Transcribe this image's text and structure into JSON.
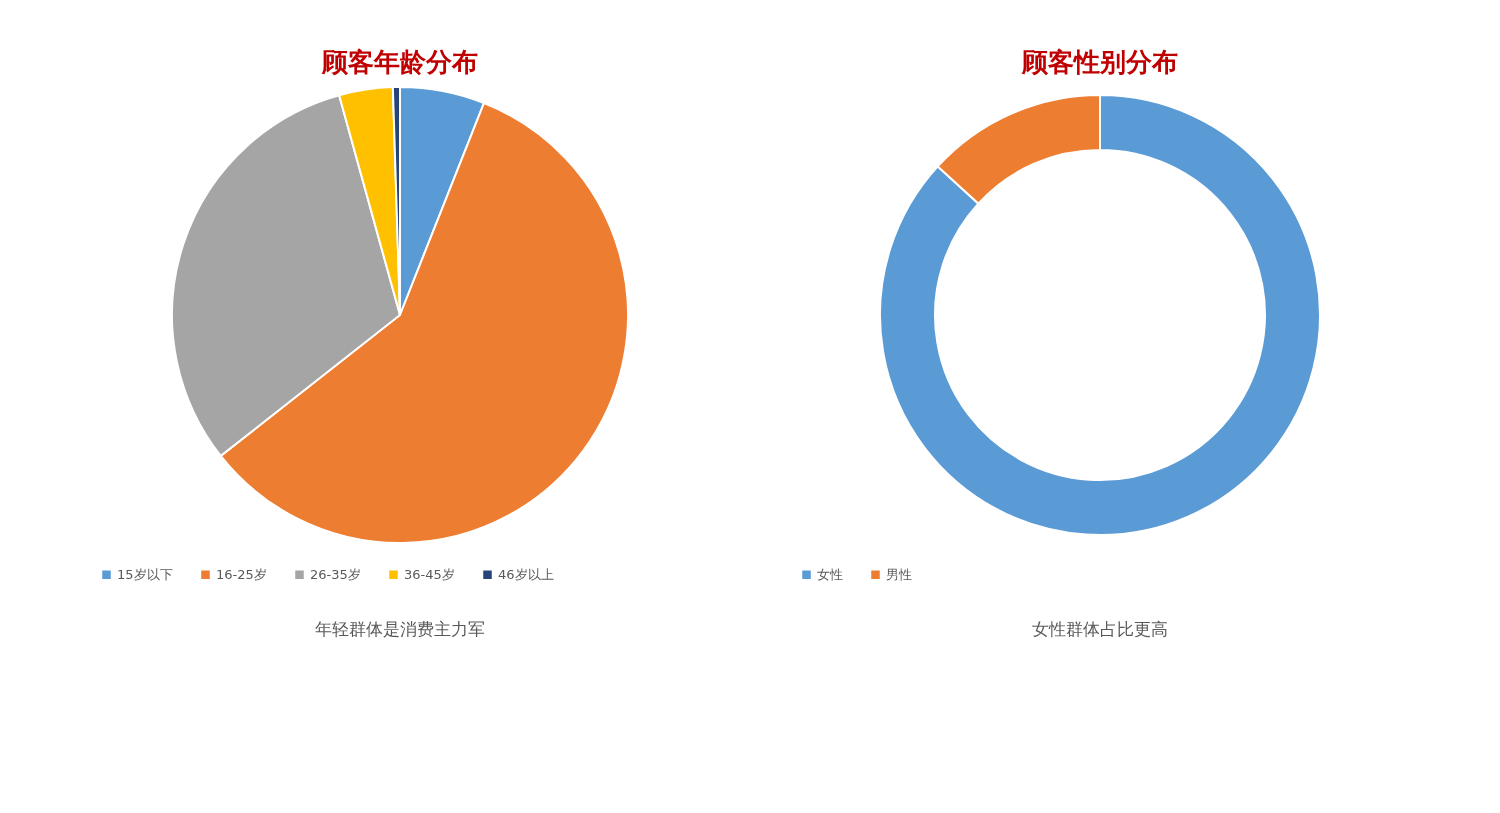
{
  "chart_data": [
    {
      "type": "pie",
      "title": "顾客年龄分布",
      "categories": [
        "15岁以下",
        "16-25岁",
        "26-35岁",
        "36-45岁",
        "46岁以上"
      ],
      "values": [
        6,
        58.4,
        31.3,
        3.8,
        0.5
      ],
      "colors": [
        "#5b9bd5",
        "#ed7d31",
        "#a5a5a5",
        "#ffc000",
        "#264478"
      ],
      "legend": "bottom",
      "annotations": [
        "年轻群体是消费主力军"
      ]
    },
    {
      "type": "donut",
      "title": "顾客性别分布",
      "categories": [
        "女性",
        "男性"
      ],
      "values": [
        86.8,
        13.2
      ],
      "colors": [
        "#5b9bd5",
        "#ed7d31"
      ],
      "legend": "bottom",
      "annotations": [
        "女性群体占比更高"
      ]
    }
  ]
}
